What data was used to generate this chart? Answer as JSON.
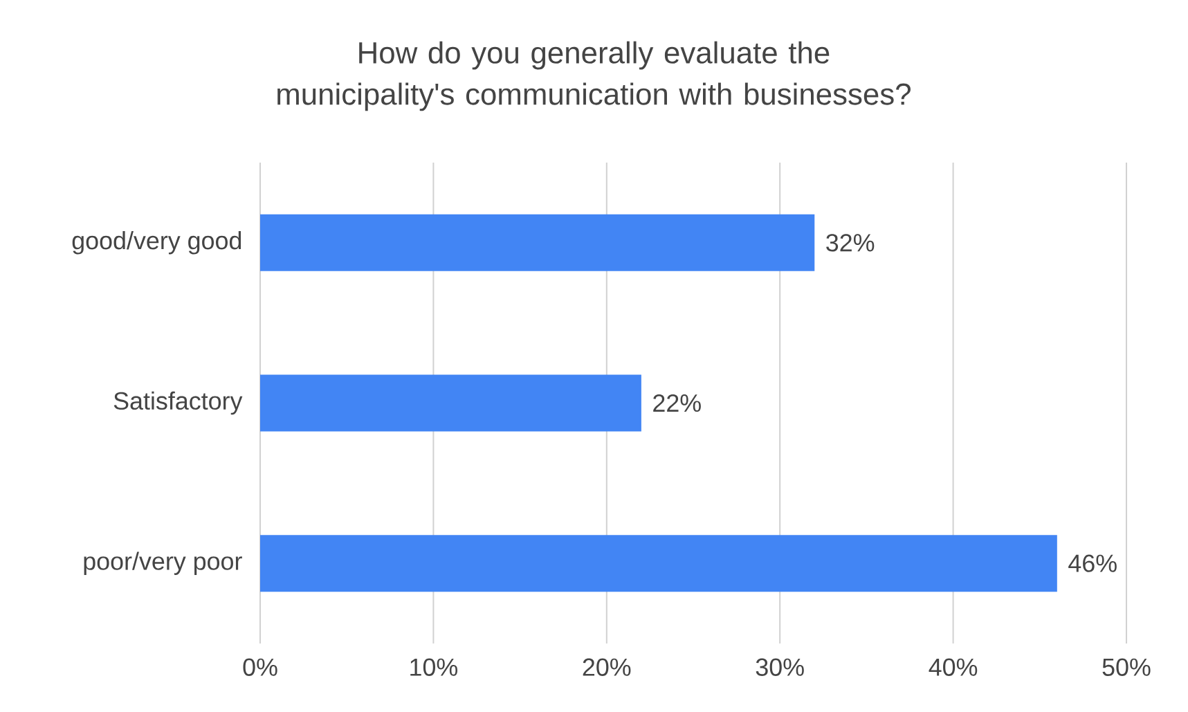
{
  "chart_data": {
    "type": "bar",
    "orientation": "horizontal",
    "title": "How do you generally evaluate the municipality's communication with businesses?",
    "categories": [
      "good/very good",
      "Satisfactory",
      "poor/very poor"
    ],
    "values": [
      32,
      22,
      46
    ],
    "value_labels": [
      "32%",
      "22%",
      "46%"
    ],
    "color": "#4285f4",
    "xlim": [
      0,
      50
    ],
    "xticks": [
      {
        "value": 0,
        "label": "0%"
      },
      {
        "value": 10,
        "label": "10%"
      },
      {
        "value": 20,
        "label": "20%"
      },
      {
        "value": 30,
        "label": "30%"
      },
      {
        "value": 40,
        "label": "40%"
      },
      {
        "value": 50,
        "label": "50%"
      }
    ],
    "grid": "x"
  }
}
